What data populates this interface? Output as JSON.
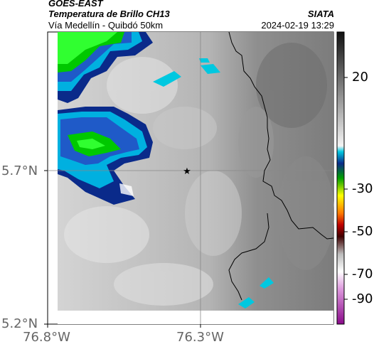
{
  "header": {
    "satellite": "GOES-EAST",
    "product": "Temperatura de Brillo CH13",
    "region": "Vía Medellín - Quibdó 50km",
    "org": "SIATA",
    "datetime": "2024-02-19 13:29"
  },
  "axes": {
    "lat_labels": [
      "5.7°N",
      "5.2°N"
    ],
    "lon_labels": [
      "76.8°W",
      "76.3°W"
    ]
  },
  "colorbar": {
    "tick_labels": [
      "20",
      "-30",
      "-50",
      "-70",
      "-90"
    ]
  },
  "map": {
    "marker_icon": "star-icon",
    "marker_color": "#000000",
    "border_color": "#000000"
  }
}
